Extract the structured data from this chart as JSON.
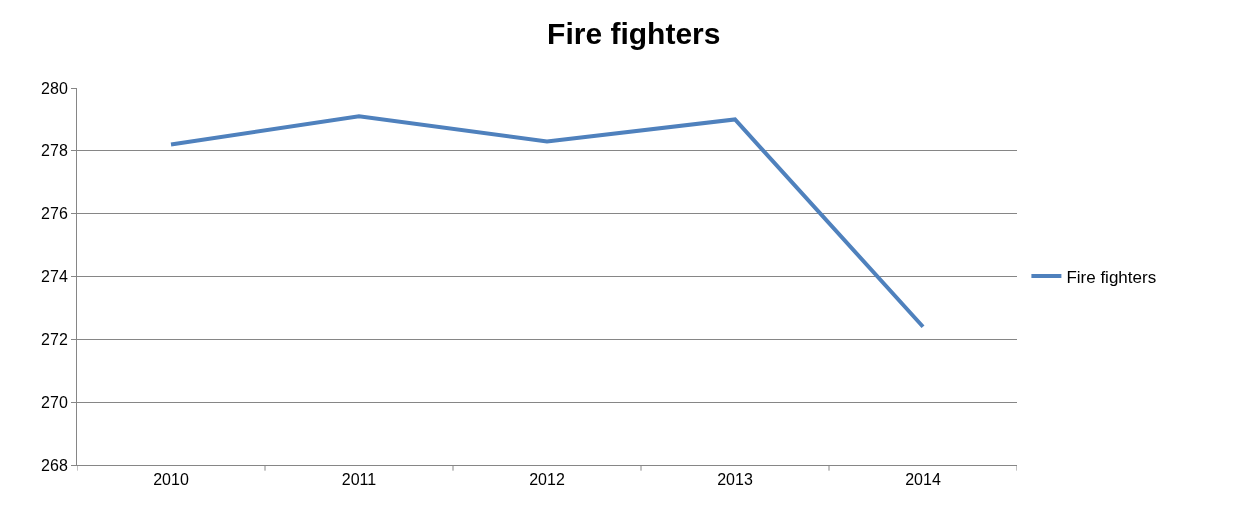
{
  "chart_data": {
    "type": "line",
    "title": "Fire fighters",
    "categories": [
      "2010",
      "2011",
      "2012",
      "2013",
      "2014"
    ],
    "series": [
      {
        "name": "Fire fighters",
        "color": "#4f81bd",
        "values": [
          278.2,
          279.1,
          278.3,
          279.0,
          272.4
        ]
      }
    ],
    "ylim": [
      268,
      280
    ],
    "yticks": [
      268,
      270,
      272,
      274,
      276,
      278,
      280
    ],
    "grid": "y",
    "legend": "right",
    "marker": "none",
    "line_style": "solid"
  }
}
